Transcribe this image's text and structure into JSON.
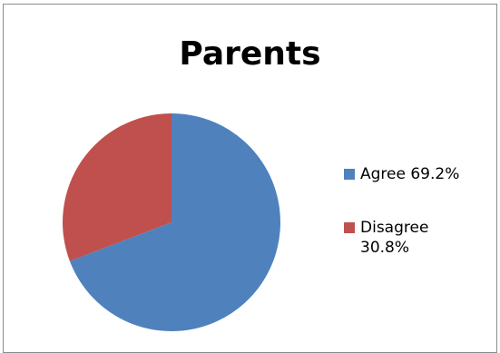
{
  "chart_data": {
    "type": "pie",
    "title": "Parents",
    "categories": [
      "Agree",
      "Disagree"
    ],
    "values": [
      69.2,
      30.8
    ],
    "colors": [
      "#4f81bd",
      "#c0504d"
    ],
    "legend_position": "right",
    "legend": [
      {
        "label": "Agree 69.2%",
        "color": "#4f81bd"
      },
      {
        "label": "Disagree 30.8%",
        "color": "#c0504d"
      }
    ]
  }
}
